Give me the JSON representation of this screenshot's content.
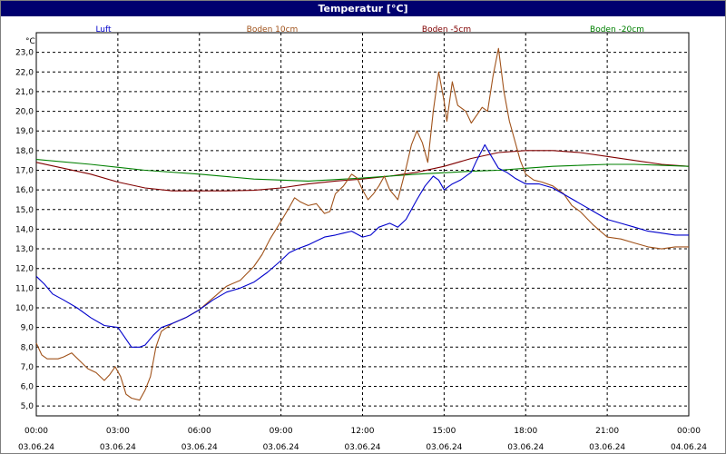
{
  "chart_data": {
    "type": "line",
    "title": "Temperatur [°C]",
    "ylabel": "°C",
    "ylim": [
      4.5,
      24.0
    ],
    "yticks": [
      "5,0",
      "6,0",
      "7,0",
      "8,0",
      "9,0",
      "10,0",
      "11,0",
      "12,0",
      "13,0",
      "14,0",
      "15,0",
      "16,0",
      "17,0",
      "18,0",
      "19,0",
      "20,0",
      "21,0",
      "22,0",
      "23,0"
    ],
    "xlim": [
      0,
      24
    ],
    "xticks": [
      {
        "time": "00:00",
        "date": "03.06.24"
      },
      {
        "time": "03:00",
        "date": "03.06.24"
      },
      {
        "time": "06:00",
        "date": "03.06.24"
      },
      {
        "time": "09:00",
        "date": "03.06.24"
      },
      {
        "time": "12:00",
        "date": "03.06.24"
      },
      {
        "time": "15:00",
        "date": "03.06.24"
      },
      {
        "time": "18:00",
        "date": "03.06.24"
      },
      {
        "time": "21:00",
        "date": "03.06.24"
      },
      {
        "time": "00:00",
        "date": "04.06.24"
      }
    ],
    "grid": true,
    "legend_position": "top",
    "series": [
      {
        "name": "Luft",
        "color": "#0000cc",
        "points": [
          [
            0,
            11.6
          ],
          [
            0.3,
            11.2
          ],
          [
            0.6,
            10.7
          ],
          [
            1,
            10.4
          ],
          [
            1.5,
            10.0
          ],
          [
            2,
            9.5
          ],
          [
            2.5,
            9.1
          ],
          [
            3,
            9.0
          ],
          [
            3.3,
            8.4
          ],
          [
            3.5,
            8.0
          ],
          [
            3.8,
            8.0
          ],
          [
            4,
            8.1
          ],
          [
            4.3,
            8.6
          ],
          [
            4.6,
            9.0
          ],
          [
            5,
            9.2
          ],
          [
            5.5,
            9.5
          ],
          [
            6,
            9.9
          ],
          [
            6.5,
            10.4
          ],
          [
            7,
            10.8
          ],
          [
            7.5,
            11.0
          ],
          [
            8,
            11.3
          ],
          [
            8.5,
            11.8
          ],
          [
            9,
            12.4
          ],
          [
            9.3,
            12.8
          ],
          [
            9.6,
            13.0
          ],
          [
            10,
            13.2
          ],
          [
            10.3,
            13.4
          ],
          [
            10.6,
            13.6
          ],
          [
            11,
            13.7
          ],
          [
            11.3,
            13.8
          ],
          [
            11.6,
            13.9
          ],
          [
            12,
            13.6
          ],
          [
            12.3,
            13.7
          ],
          [
            12.6,
            14.1
          ],
          [
            13,
            14.3
          ],
          [
            13.3,
            14.1
          ],
          [
            13.6,
            14.5
          ],
          [
            14,
            15.5
          ],
          [
            14.3,
            16.2
          ],
          [
            14.6,
            16.7
          ],
          [
            14.8,
            16.5
          ],
          [
            15,
            16.0
          ],
          [
            15.3,
            16.3
          ],
          [
            15.6,
            16.5
          ],
          [
            16,
            16.9
          ],
          [
            16.2,
            17.5
          ],
          [
            16.5,
            18.3
          ],
          [
            16.7,
            17.8
          ],
          [
            17,
            17.1
          ],
          [
            17.3,
            16.9
          ],
          [
            17.6,
            16.6
          ],
          [
            18,
            16.3
          ],
          [
            18.5,
            16.3
          ],
          [
            19,
            16.1
          ],
          [
            19.5,
            15.7
          ],
          [
            20,
            15.3
          ],
          [
            20.5,
            14.9
          ],
          [
            21,
            14.5
          ],
          [
            21.5,
            14.3
          ],
          [
            22,
            14.1
          ],
          [
            22.5,
            13.9
          ],
          [
            23,
            13.8
          ],
          [
            23.5,
            13.7
          ],
          [
            24,
            13.7
          ]
        ]
      },
      {
        "name": "Boden 10cm",
        "color": "#a0521a",
        "points": [
          [
            0,
            8.2
          ],
          [
            0.2,
            7.6
          ],
          [
            0.4,
            7.4
          ],
          [
            0.8,
            7.4
          ],
          [
            1,
            7.5
          ],
          [
            1.3,
            7.7
          ],
          [
            1.6,
            7.3
          ],
          [
            1.9,
            6.9
          ],
          [
            2.2,
            6.7
          ],
          [
            2.5,
            6.3
          ],
          [
            2.7,
            6.6
          ],
          [
            2.9,
            7.0
          ],
          [
            3.1,
            6.5
          ],
          [
            3.3,
            5.6
          ],
          [
            3.5,
            5.4
          ],
          [
            3.8,
            5.3
          ],
          [
            4,
            5.8
          ],
          [
            4.2,
            6.5
          ],
          [
            4.4,
            8.0
          ],
          [
            4.6,
            8.8
          ],
          [
            5,
            9.2
          ],
          [
            5.5,
            9.5
          ],
          [
            6,
            9.9
          ],
          [
            6.5,
            10.5
          ],
          [
            7,
            11.1
          ],
          [
            7.5,
            11.4
          ],
          [
            8,
            12.1
          ],
          [
            8.3,
            12.7
          ],
          [
            8.6,
            13.5
          ],
          [
            9,
            14.4
          ],
          [
            9.3,
            15.1
          ],
          [
            9.5,
            15.6
          ],
          [
            9.7,
            15.4
          ],
          [
            10,
            15.2
          ],
          [
            10.3,
            15.3
          ],
          [
            10.6,
            14.8
          ],
          [
            10.8,
            14.9
          ],
          [
            11,
            15.8
          ],
          [
            11.3,
            16.2
          ],
          [
            11.6,
            16.8
          ],
          [
            11.8,
            16.6
          ],
          [
            12,
            16.0
          ],
          [
            12.2,
            15.5
          ],
          [
            12.4,
            15.8
          ],
          [
            12.6,
            16.2
          ],
          [
            12.8,
            16.7
          ],
          [
            13,
            16.0
          ],
          [
            13.3,
            15.5
          ],
          [
            13.6,
            17.1
          ],
          [
            13.8,
            18.3
          ],
          [
            14,
            19.0
          ],
          [
            14.2,
            18.4
          ],
          [
            14.4,
            17.4
          ],
          [
            14.6,
            20.0
          ],
          [
            14.8,
            22.0
          ],
          [
            15,
            20.5
          ],
          [
            15.1,
            19.5
          ],
          [
            15.3,
            21.5
          ],
          [
            15.5,
            20.3
          ],
          [
            15.8,
            20.0
          ],
          [
            16,
            19.4
          ],
          [
            16.2,
            19.8
          ],
          [
            16.4,
            20.2
          ],
          [
            16.6,
            20.0
          ],
          [
            16.8,
            21.8
          ],
          [
            17,
            23.2
          ],
          [
            17.2,
            21.0
          ],
          [
            17.4,
            19.5
          ],
          [
            17.6,
            18.5
          ],
          [
            17.8,
            17.5
          ],
          [
            18,
            16.8
          ],
          [
            18.3,
            16.5
          ],
          [
            18.6,
            16.4
          ],
          [
            19,
            16.2
          ],
          [
            19.4,
            15.8
          ],
          [
            19.7,
            15.2
          ],
          [
            20,
            14.9
          ],
          [
            20.5,
            14.2
          ],
          [
            21,
            13.6
          ],
          [
            21.5,
            13.5
          ],
          [
            22,
            13.3
          ],
          [
            22.5,
            13.1
          ],
          [
            23,
            13.0
          ],
          [
            23.5,
            13.1
          ],
          [
            24,
            13.1
          ]
        ]
      },
      {
        "name": "Boden -5cm",
        "color": "#800000",
        "points": [
          [
            0,
            17.4
          ],
          [
            1,
            17.1
          ],
          [
            2,
            16.8
          ],
          [
            3,
            16.4
          ],
          [
            4,
            16.1
          ],
          [
            5,
            15.95
          ],
          [
            6,
            15.95
          ],
          [
            7,
            15.95
          ],
          [
            8,
            15.98
          ],
          [
            9,
            16.1
          ],
          [
            10,
            16.3
          ],
          [
            11,
            16.45
          ],
          [
            12,
            16.55
          ],
          [
            13,
            16.7
          ],
          [
            14,
            16.9
          ],
          [
            15,
            17.2
          ],
          [
            16,
            17.6
          ],
          [
            17,
            17.9
          ],
          [
            18,
            18.0
          ],
          [
            19,
            18.0
          ],
          [
            20,
            17.9
          ],
          [
            21,
            17.7
          ],
          [
            22,
            17.5
          ],
          [
            23,
            17.3
          ],
          [
            24,
            17.2
          ]
        ]
      },
      {
        "name": "Boden -20cm",
        "color": "#008000",
        "points": [
          [
            0,
            17.55
          ],
          [
            2,
            17.3
          ],
          [
            4,
            17.0
          ],
          [
            6,
            16.8
          ],
          [
            8,
            16.55
          ],
          [
            10,
            16.45
          ],
          [
            12,
            16.6
          ],
          [
            14,
            16.8
          ],
          [
            16,
            16.95
          ],
          [
            17,
            17.0
          ],
          [
            18,
            17.1
          ],
          [
            19,
            17.2
          ],
          [
            20,
            17.25
          ],
          [
            21,
            17.3
          ],
          [
            22,
            17.3
          ],
          [
            23,
            17.25
          ],
          [
            24,
            17.2
          ]
        ]
      }
    ]
  }
}
